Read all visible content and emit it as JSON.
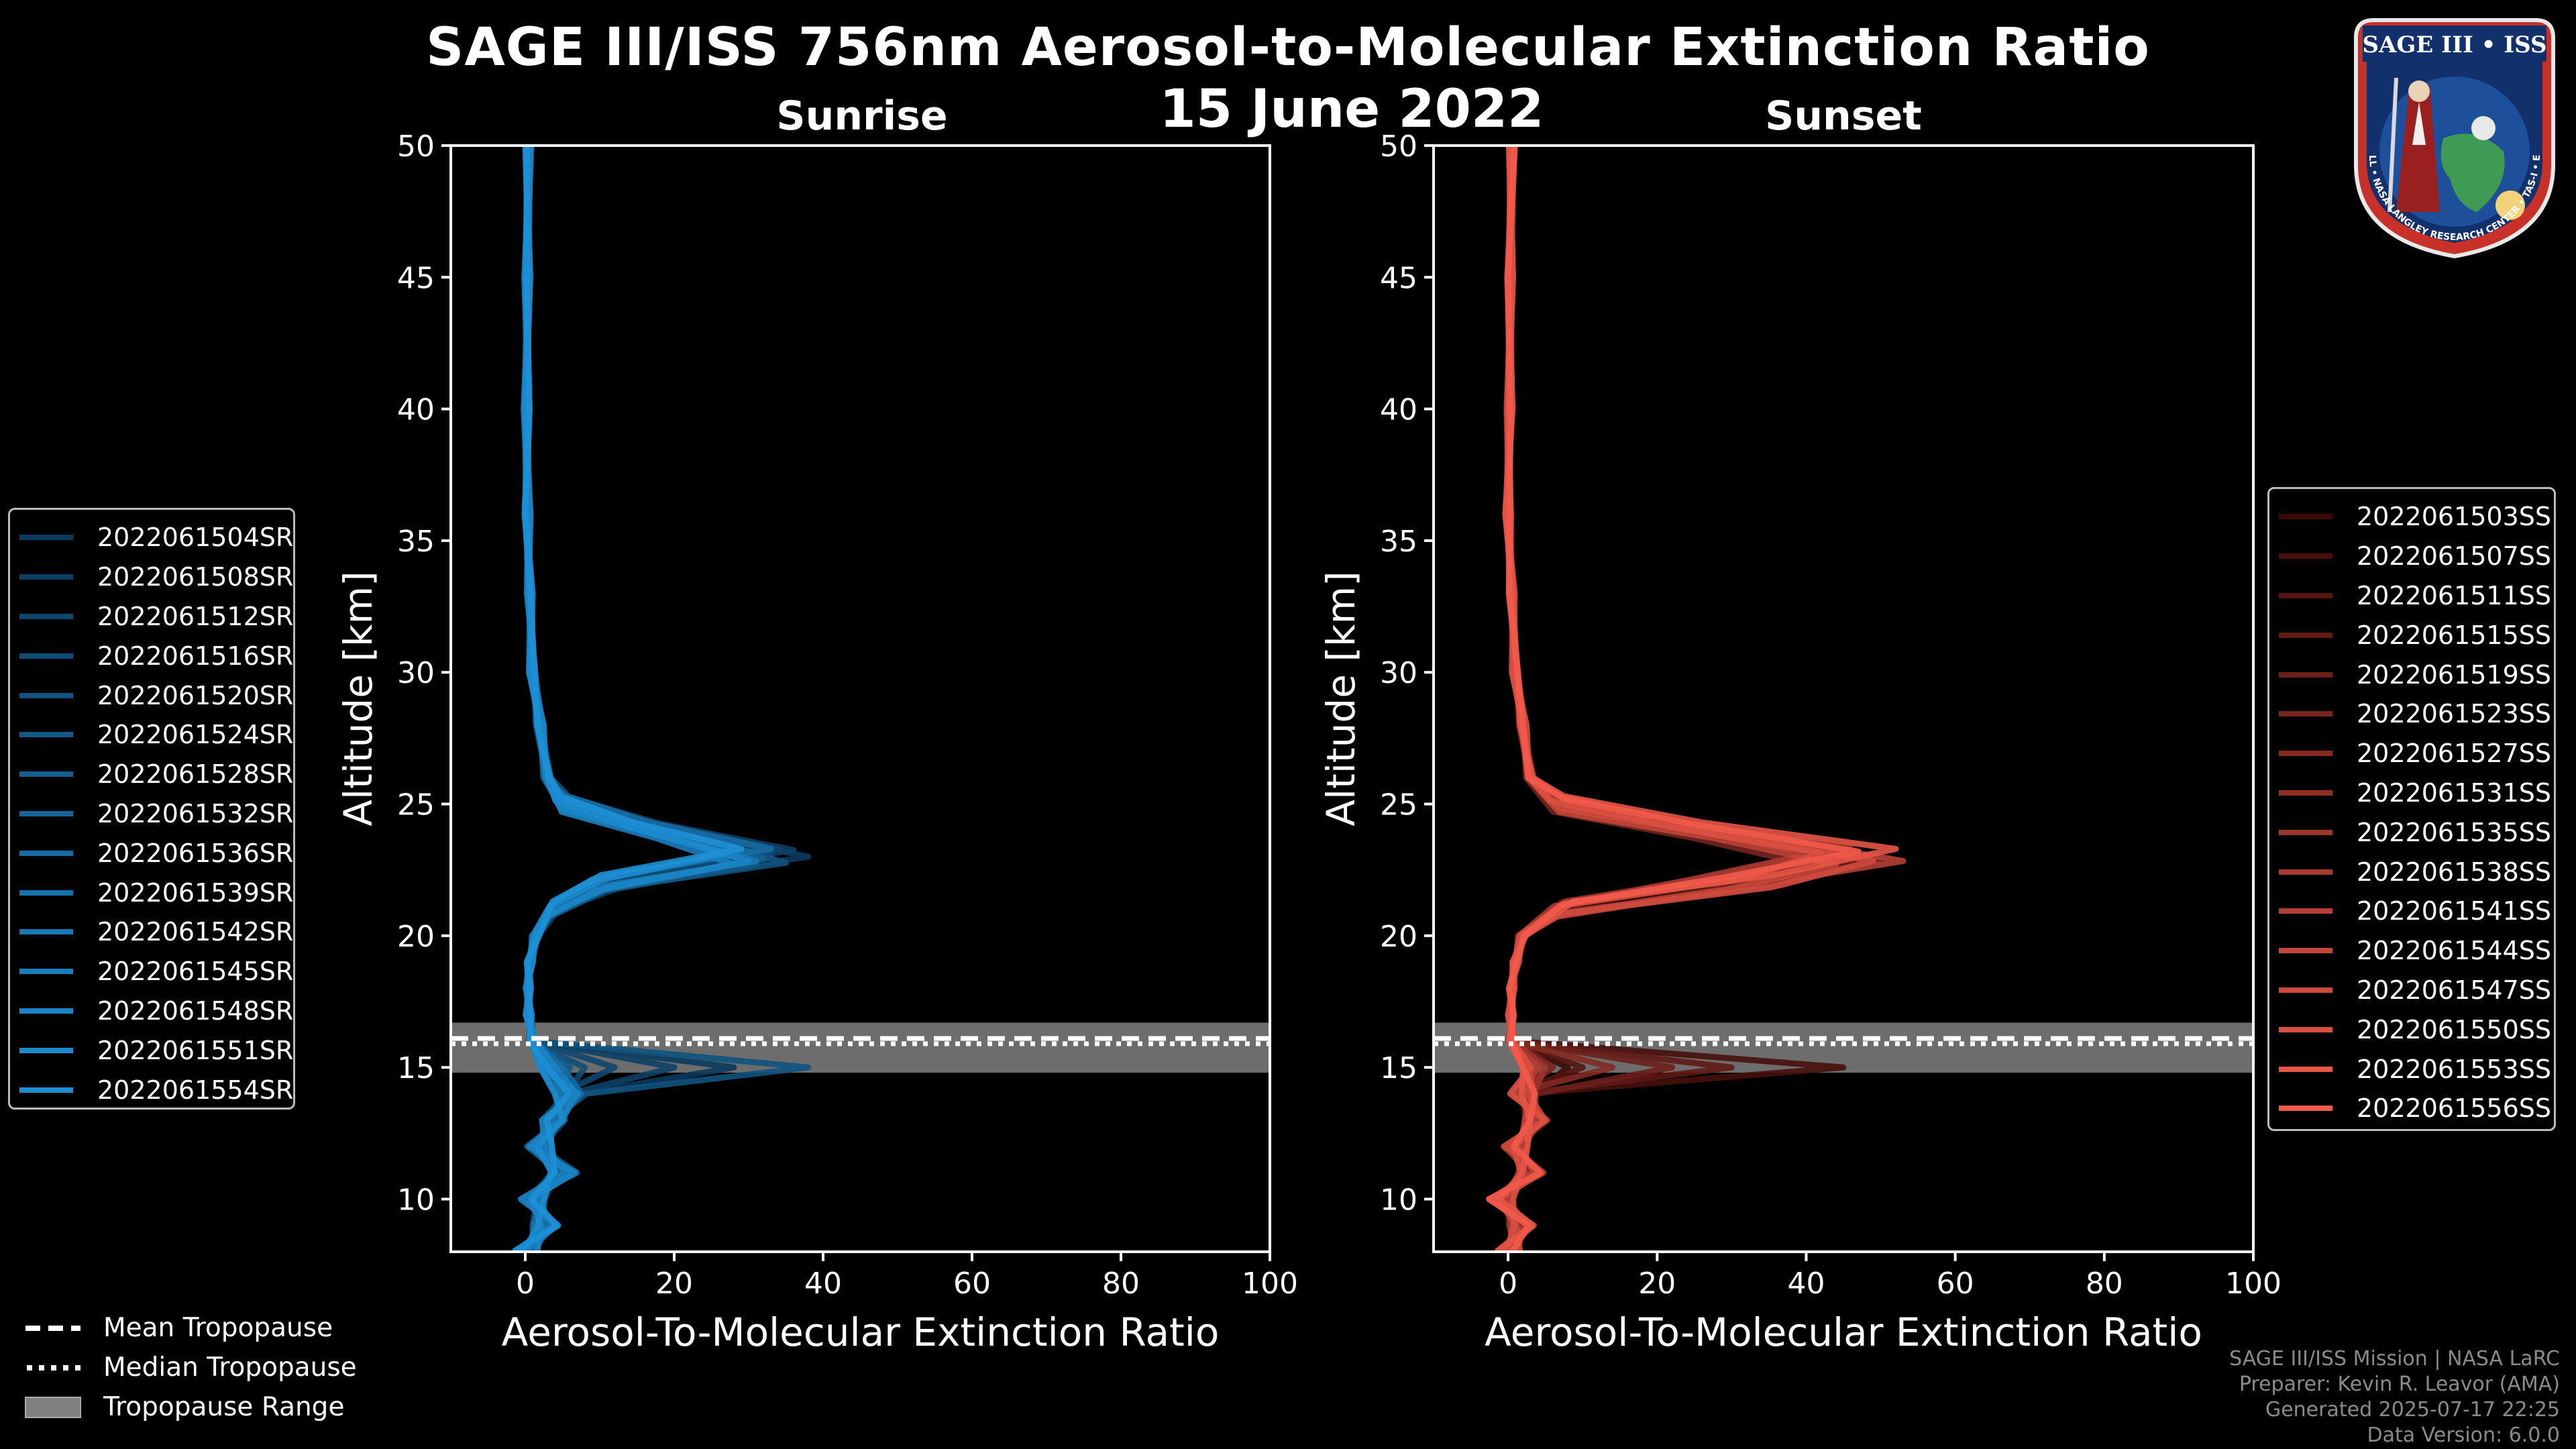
{
  "title": "SAGE III/ISS 756nm Aerosol-to-Molecular Extinction Ratio",
  "date": "15 June 2022",
  "panels": {
    "sunrise": {
      "subtitle": "Sunrise"
    },
    "sunset": {
      "subtitle": "Sunset"
    }
  },
  "legend_sunrise": [
    "2022061504SR",
    "2022061508SR",
    "2022061512SR",
    "2022061516SR",
    "2022061520SR",
    "2022061524SR",
    "2022061528SR",
    "2022061532SR",
    "2022061536SR",
    "2022061539SR",
    "2022061542SR",
    "2022061545SR",
    "2022061548SR",
    "2022061551SR",
    "2022061554SR"
  ],
  "legend_sunset": [
    "2022061503SS",
    "2022061507SS",
    "2022061511SS",
    "2022061515SS",
    "2022061519SS",
    "2022061523SS",
    "2022061527SS",
    "2022061531SS",
    "2022061535SS",
    "2022061538SS",
    "2022061541SS",
    "2022061544SS",
    "2022061547SS",
    "2022061550SS",
    "2022061553SS",
    "2022061556SS"
  ],
  "tropopause_legend": {
    "mean": "Mean Tropopause",
    "median": "Median Tropopause",
    "range": "Tropopause Range"
  },
  "credits": {
    "line1": "SAGE III/ISS Mission | NASA LaRC",
    "line2": "Preparer: Kevin R. Leavor (AMA)",
    "line3": "Generated 2025-07-17 22:25",
    "line4": "Data Version: 6.0.0"
  },
  "logo": {
    "text_top": "SAGE III • ISS",
    "ring_text": "BALL • NASA LANGLEY RESEARCH CENTER • TAS-I • ESA"
  },
  "colors": {
    "sunrise_dark": "#0b3a5c",
    "sunrise_light": "#1e90d6",
    "sunset_dark": "#3a0a08",
    "sunset_light": "#f25a4a",
    "tropopause_band": "#808080"
  },
  "chart_data": [
    {
      "type": "line",
      "panel": "sunrise",
      "title": "Sunrise",
      "xlabel": "Aerosol-To-Molecular Extinction Ratio",
      "ylabel": "Altitude [km]",
      "xlim": [
        -10,
        100
      ],
      "ylim": [
        8,
        50
      ],
      "xticks": [
        0,
        20,
        40,
        60,
        80,
        100
      ],
      "yticks": [
        10,
        15,
        20,
        25,
        30,
        35,
        40,
        45,
        50
      ],
      "tropopause": {
        "mean": 16.1,
        "median": 15.9,
        "range": [
          14.8,
          16.7
        ]
      },
      "base_profile": [
        [
          0,
          8
        ],
        [
          3,
          9
        ],
        [
          1,
          10
        ],
        [
          5,
          11
        ],
        [
          2,
          12
        ],
        [
          4,
          13
        ],
        [
          6,
          14
        ],
        [
          3,
          15
        ],
        [
          1,
          16
        ],
        [
          0.5,
          17
        ],
        [
          0.4,
          18
        ],
        [
          0.6,
          19
        ],
        [
          1.5,
          20
        ],
        [
          4,
          21
        ],
        [
          12,
          22
        ],
        [
          30,
          23
        ],
        [
          20,
          24
        ],
        [
          6,
          25
        ],
        [
          3,
          26
        ],
        [
          2,
          28
        ],
        [
          1,
          30
        ],
        [
          0.6,
          33
        ],
        [
          0.3,
          36
        ],
        [
          0.2,
          40
        ],
        [
          0.3,
          45
        ],
        [
          0.4,
          50
        ]
      ],
      "series": [
        {
          "name": "2022061504SR",
          "scale": 1.0,
          "peak": 38,
          "trop_spike": 28
        },
        {
          "name": "2022061508SR",
          "scale": 0.95,
          "peak": 36,
          "trop_spike": 20
        },
        {
          "name": "2022061512SR",
          "scale": 1.05,
          "peak": 34,
          "trop_spike": 12
        },
        {
          "name": "2022061516SR",
          "scale": 0.9,
          "peak": 33,
          "trop_spike": 8
        },
        {
          "name": "2022061520SR",
          "scale": 1.1,
          "peak": 35,
          "trop_spike": 38
        },
        {
          "name": "2022061524SR",
          "scale": 0.85,
          "peak": 31,
          "trop_spike": 6
        },
        {
          "name": "2022061528SR",
          "scale": 1.0,
          "peak": 32,
          "trop_spike": 4
        },
        {
          "name": "2022061532SR",
          "scale": 0.95,
          "peak": 30,
          "trop_spike": 3
        },
        {
          "name": "2022061536SR",
          "scale": 1.05,
          "peak": 33,
          "trop_spike": 5
        },
        {
          "name": "2022061539SR",
          "scale": 0.9,
          "peak": 29,
          "trop_spike": 2
        },
        {
          "name": "2022061542SR",
          "scale": 1.0,
          "peak": 31,
          "trop_spike": 3
        },
        {
          "name": "2022061545SR",
          "scale": 0.95,
          "peak": 28,
          "trop_spike": 2
        },
        {
          "name": "2022061548SR",
          "scale": 1.05,
          "peak": 30,
          "trop_spike": 4
        },
        {
          "name": "2022061551SR",
          "scale": 0.92,
          "peak": 27,
          "trop_spike": 2
        },
        {
          "name": "2022061554SR",
          "scale": 1.0,
          "peak": 29,
          "trop_spike": 3
        }
      ]
    },
    {
      "type": "line",
      "panel": "sunset",
      "title": "Sunset",
      "xlabel": "Aerosol-To-Molecular Extinction Ratio",
      "ylabel": "Altitude [km]",
      "xlim": [
        -10,
        100
      ],
      "ylim": [
        8,
        50
      ],
      "xticks": [
        0,
        20,
        40,
        60,
        80,
        100
      ],
      "yticks": [
        10,
        15,
        20,
        25,
        30,
        35,
        40,
        45,
        50
      ],
      "tropopause": {
        "mean": 16.1,
        "median": 15.9,
        "range": [
          14.8,
          16.7
        ]
      },
      "base_profile": [
        [
          0,
          8
        ],
        [
          2,
          9
        ],
        [
          -1,
          10
        ],
        [
          3,
          11
        ],
        [
          1,
          12
        ],
        [
          4,
          13
        ],
        [
          2,
          14
        ],
        [
          1,
          15
        ],
        [
          0.5,
          16
        ],
        [
          0.4,
          17
        ],
        [
          0.5,
          18
        ],
        [
          1,
          19
        ],
        [
          2,
          20
        ],
        [
          8,
          21
        ],
        [
          35,
          22
        ],
        [
          45,
          23
        ],
        [
          30,
          24
        ],
        [
          8,
          25
        ],
        [
          3,
          26
        ],
        [
          2,
          28
        ],
        [
          1,
          30
        ],
        [
          0.5,
          33
        ],
        [
          0,
          36
        ],
        [
          0.2,
          40
        ],
        [
          0.3,
          45
        ],
        [
          0.5,
          50
        ]
      ],
      "series": [
        {
          "name": "2022061503SS",
          "scale": 1.0,
          "peak": 48,
          "trop_spike": 8
        },
        {
          "name": "2022061507SS",
          "scale": 0.95,
          "peak": 45,
          "trop_spike": 45
        },
        {
          "name": "2022061511SS",
          "scale": 1.05,
          "peak": 44,
          "trop_spike": 10
        },
        {
          "name": "2022061515SS",
          "scale": 0.9,
          "peak": 42,
          "trop_spike": 30
        },
        {
          "name": "2022061519SS",
          "scale": 1.1,
          "peak": 47,
          "trop_spike": 22
        },
        {
          "name": "2022061523SS",
          "scale": 0.85,
          "peak": 40,
          "trop_spike": 6
        },
        {
          "name": "2022061527SS",
          "scale": 1.0,
          "peak": 50,
          "trop_spike": 14
        },
        {
          "name": "2022061531SS",
          "scale": 0.95,
          "peak": 43,
          "trop_spike": 4
        },
        {
          "name": "2022061535SS",
          "scale": 1.05,
          "peak": 46,
          "trop_spike": 5
        },
        {
          "name": "2022061538SS",
          "scale": 0.9,
          "peak": 41,
          "trop_spike": 3
        },
        {
          "name": "2022061541SS",
          "scale": 1.0,
          "peak": 53,
          "trop_spike": 4
        },
        {
          "name": "2022061544SS",
          "scale": 0.95,
          "peak": 44,
          "trop_spike": 3
        },
        {
          "name": "2022061547SS",
          "scale": 1.05,
          "peak": 49,
          "trop_spike": 2
        },
        {
          "name": "2022061550SS",
          "scale": 0.92,
          "peak": 42,
          "trop_spike": 3
        },
        {
          "name": "2022061553SS",
          "scale": 1.0,
          "peak": 52,
          "trop_spike": 2
        },
        {
          "name": "2022061556SS",
          "scale": 1.0,
          "peak": 47,
          "trop_spike": 2
        }
      ]
    }
  ]
}
